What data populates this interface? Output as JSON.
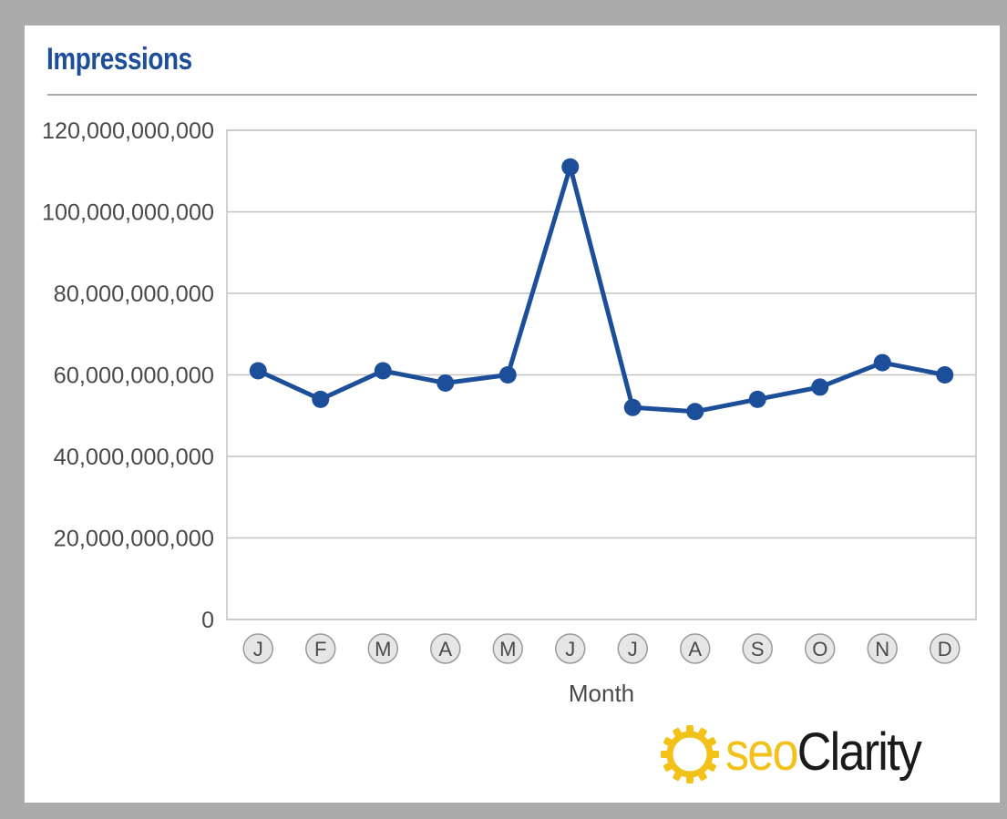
{
  "chart_data": {
    "type": "line",
    "title": "Impressions",
    "xlabel": "Month",
    "ylabel": "",
    "categories": [
      "J",
      "F",
      "M",
      "A",
      "M",
      "J",
      "J",
      "A",
      "S",
      "O",
      "N",
      "D"
    ],
    "series": [
      {
        "values": [
          61000000000,
          54000000000,
          61000000000,
          58000000000,
          60000000000,
          111000000000,
          52000000000,
          51000000000,
          54000000000,
          57000000000,
          63000000000,
          60000000000
        ]
      }
    ],
    "ylim": [
      0,
      120000000000
    ],
    "yticks": [
      0,
      20000000000,
      40000000000,
      60000000000,
      80000000000,
      100000000000,
      120000000000
    ],
    "ytick_labels": [
      "0",
      "20,000,000,000",
      "40,000,000,000",
      "60,000,000,000",
      "80,000,000,000",
      "100,000,000,000",
      "120,000,000,000"
    ],
    "grid": true,
    "colors": {
      "line": "#1d4e9a",
      "title": "#1d4e9a",
      "grid": "#c4c4c4"
    }
  },
  "logo": {
    "seo": "seo",
    "clarity": "Clarity",
    "icon": "sun-gear-icon"
  }
}
